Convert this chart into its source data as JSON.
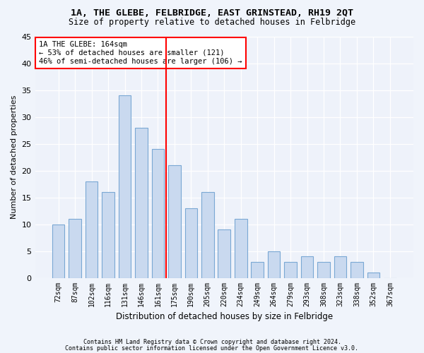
{
  "title1": "1A, THE GLEBE, FELBRIDGE, EAST GRINSTEAD, RH19 2QT",
  "title2": "Size of property relative to detached houses in Felbridge",
  "xlabel": "Distribution of detached houses by size in Felbridge",
  "ylabel": "Number of detached properties",
  "bin_labels": [
    "72sqm",
    "87sqm",
    "102sqm",
    "116sqm",
    "131sqm",
    "146sqm",
    "161sqm",
    "175sqm",
    "190sqm",
    "205sqm",
    "220sqm",
    "234sqm",
    "249sqm",
    "264sqm",
    "279sqm",
    "293sqm",
    "308sqm",
    "323sqm",
    "338sqm",
    "352sqm",
    "367sqm"
  ],
  "bar_heights": [
    10,
    11,
    18,
    16,
    34,
    28,
    24,
    21,
    13,
    16,
    9,
    11,
    3,
    5,
    3,
    4,
    3,
    4,
    3,
    1,
    0
  ],
  "bar_color": "#c9d9ef",
  "bar_edge_color": "#7aa8d4",
  "vline_color": "red",
  "vline_pos": 6.5,
  "annotation_text": "1A THE GLEBE: 164sqm\n← 53% of detached houses are smaller (121)\n46% of semi-detached houses are larger (106) →",
  "annotation_box_color": "white",
  "annotation_box_edge": "red",
  "ylim": [
    0,
    45
  ],
  "yticks": [
    0,
    5,
    10,
    15,
    20,
    25,
    30,
    35,
    40,
    45
  ],
  "footer1": "Contains HM Land Registry data © Crown copyright and database right 2024.",
  "footer2": "Contains public sector information licensed under the Open Government Licence v3.0.",
  "bg_color": "#f0f4fb",
  "plot_bg_color": "#eef2fa"
}
